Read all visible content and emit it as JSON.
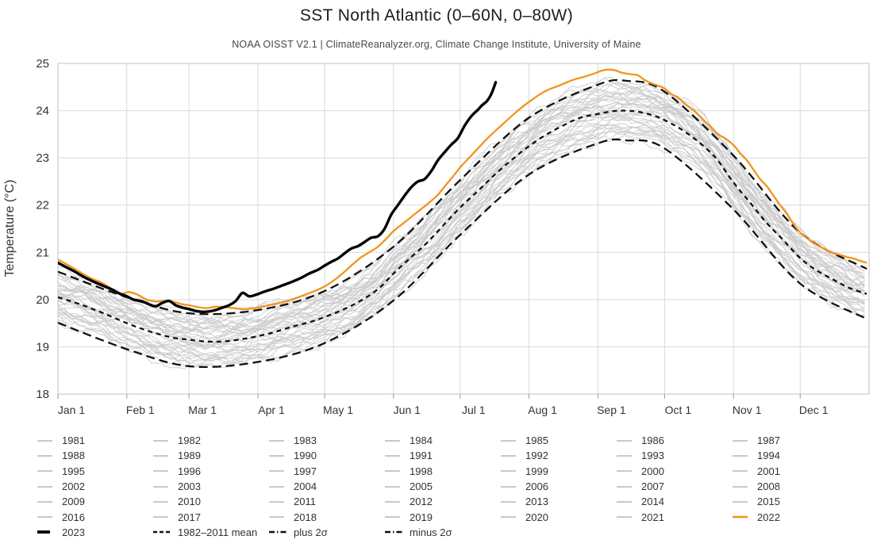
{
  "header": {
    "title": "SST North Atlantic (0–60N, 0–80W)",
    "subtitle": "NOAA OISST V2.1 | ClimateReanalyzer.org, Climate Change Institute, University of Maine"
  },
  "colors": {
    "current_year": "#000000",
    "previous_year": "#f2941d",
    "stat_lines": "#111111",
    "background_series": "#c9c9c9",
    "grid": "#d9d9d9",
    "axis": "#c0c0c0",
    "tick": "#999999",
    "axis_text": "#333333"
  },
  "chart_data": {
    "type": "line",
    "title": "SST North Atlantic (0–60N, 0–80W)",
    "subtitle": "NOAA OISST V2.1 | ClimateReanalyzer.org, Climate Change Institute, University of Maine",
    "xlabel": "",
    "ylabel": "Temperature (°C)",
    "ylim": [
      18,
      25
    ],
    "yticks": [
      18,
      19,
      20,
      21,
      22,
      23,
      24,
      25
    ],
    "xtick_labels": [
      "Jan 1",
      "Feb 1",
      "Mar 1",
      "Apr 1",
      "May 1",
      "Jun 1",
      "Jul 1",
      "Aug 1",
      "Sep 1",
      "Oct 1",
      "Nov 1",
      "Dec 1"
    ],
    "month_start_days": [
      0,
      31,
      59,
      90,
      120,
      151,
      181,
      212,
      243,
      273,
      304,
      334
    ],
    "grid": true,
    "legend_position": "bottom",
    "series": {
      "year_2023": {
        "label": "2023",
        "style": "solid-bold",
        "points": [
          [
            0,
            20.78
          ],
          [
            4,
            20.68
          ],
          [
            8,
            20.58
          ],
          [
            12,
            20.47
          ],
          [
            16,
            20.38
          ],
          [
            20,
            20.3
          ],
          [
            24,
            20.22
          ],
          [
            28,
            20.12
          ],
          [
            31,
            20.07
          ],
          [
            34,
            20.0
          ],
          [
            38,
            19.96
          ],
          [
            41,
            19.9
          ],
          [
            44,
            19.86
          ],
          [
            47,
            19.93
          ],
          [
            50,
            19.97
          ],
          [
            53,
            19.88
          ],
          [
            56,
            19.83
          ],
          [
            59,
            19.8
          ],
          [
            62,
            19.76
          ],
          [
            65,
            19.74
          ],
          [
            68,
            19.75
          ],
          [
            71,
            19.78
          ],
          [
            74,
            19.83
          ],
          [
            77,
            19.88
          ],
          [
            80,
            19.97
          ],
          [
            83,
            20.14
          ],
          [
            86,
            20.07
          ],
          [
            89,
            20.1
          ],
          [
            93,
            20.17
          ],
          [
            97,
            20.23
          ],
          [
            101,
            20.3
          ],
          [
            105,
            20.37
          ],
          [
            109,
            20.45
          ],
          [
            113,
            20.55
          ],
          [
            117,
            20.63
          ],
          [
            120,
            20.72
          ],
          [
            123,
            20.8
          ],
          [
            126,
            20.87
          ],
          [
            129,
            20.98
          ],
          [
            132,
            21.08
          ],
          [
            135,
            21.13
          ],
          [
            138,
            21.22
          ],
          [
            141,
            21.31
          ],
          [
            144,
            21.34
          ],
          [
            147,
            21.5
          ],
          [
            150,
            21.8
          ],
          [
            153,
            22.0
          ],
          [
            156,
            22.2
          ],
          [
            159,
            22.38
          ],
          [
            162,
            22.5
          ],
          [
            165,
            22.55
          ],
          [
            168,
            22.72
          ],
          [
            171,
            22.95
          ],
          [
            174,
            23.12
          ],
          [
            177,
            23.28
          ],
          [
            180,
            23.42
          ],
          [
            183,
            23.68
          ],
          [
            186,
            23.88
          ],
          [
            189,
            24.02
          ],
          [
            191,
            24.12
          ],
          [
            193,
            24.2
          ],
          [
            195,
            24.35
          ],
          [
            197,
            24.6
          ]
        ]
      },
      "year_2022": {
        "label": "2022",
        "style": "solid",
        "points": [
          [
            0,
            20.85
          ],
          [
            5,
            20.72
          ],
          [
            10,
            20.58
          ],
          [
            15,
            20.45
          ],
          [
            20,
            20.35
          ],
          [
            25,
            20.2
          ],
          [
            28,
            20.12
          ],
          [
            32,
            20.16
          ],
          [
            36,
            20.1
          ],
          [
            40,
            20.0
          ],
          [
            44,
            19.96
          ],
          [
            48,
            19.97
          ],
          [
            52,
            19.95
          ],
          [
            56,
            19.9
          ],
          [
            59,
            19.88
          ],
          [
            63,
            19.84
          ],
          [
            67,
            19.82
          ],
          [
            71,
            19.85
          ],
          [
            75,
            19.84
          ],
          [
            79,
            19.82
          ],
          [
            83,
            19.8
          ],
          [
            87,
            19.81
          ],
          [
            91,
            19.84
          ],
          [
            95,
            19.88
          ],
          [
            99,
            19.92
          ],
          [
            103,
            19.97
          ],
          [
            107,
            20.03
          ],
          [
            111,
            20.1
          ],
          [
            115,
            20.17
          ],
          [
            120,
            20.28
          ],
          [
            124,
            20.4
          ],
          [
            128,
            20.55
          ],
          [
            132,
            20.72
          ],
          [
            136,
            20.88
          ],
          [
            140,
            21.0
          ],
          [
            144,
            21.12
          ],
          [
            148,
            21.3
          ],
          [
            151,
            21.45
          ],
          [
            155,
            21.6
          ],
          [
            159,
            21.75
          ],
          [
            163,
            21.9
          ],
          [
            167,
            22.05
          ],
          [
            171,
            22.22
          ],
          [
            175,
            22.45
          ],
          [
            178,
            22.62
          ],
          [
            181,
            22.8
          ],
          [
            185,
            23.0
          ],
          [
            189,
            23.2
          ],
          [
            193,
            23.4
          ],
          [
            197,
            23.58
          ],
          [
            201,
            23.75
          ],
          [
            205,
            23.92
          ],
          [
            209,
            24.08
          ],
          [
            213,
            24.22
          ],
          [
            217,
            24.35
          ],
          [
            221,
            24.45
          ],
          [
            225,
            24.52
          ],
          [
            229,
            24.6
          ],
          [
            233,
            24.67
          ],
          [
            237,
            24.72
          ],
          [
            241,
            24.78
          ],
          [
            245,
            24.85
          ],
          [
            248,
            24.87
          ],
          [
            251,
            24.85
          ],
          [
            254,
            24.8
          ],
          [
            258,
            24.77
          ],
          [
            261,
            24.75
          ],
          [
            264,
            24.65
          ],
          [
            267,
            24.58
          ],
          [
            270,
            24.53
          ],
          [
            273,
            24.47
          ],
          [
            276,
            24.35
          ],
          [
            279,
            24.28
          ],
          [
            282,
            24.15
          ],
          [
            285,
            24.05
          ],
          [
            288,
            23.92
          ],
          [
            291,
            23.78
          ],
          [
            294,
            23.65
          ],
          [
            297,
            23.5
          ],
          [
            300,
            23.42
          ],
          [
            304,
            23.27
          ],
          [
            307,
            23.1
          ],
          [
            310,
            22.95
          ],
          [
            313,
            22.75
          ],
          [
            316,
            22.55
          ],
          [
            319,
            22.4
          ],
          [
            322,
            22.2
          ],
          [
            325,
            22.0
          ],
          [
            328,
            21.82
          ],
          [
            331,
            21.6
          ],
          [
            334,
            21.42
          ],
          [
            337,
            21.3
          ],
          [
            340,
            21.2
          ],
          [
            343,
            21.12
          ],
          [
            346,
            21.05
          ],
          [
            349,
            20.98
          ],
          [
            352,
            20.95
          ],
          [
            355,
            20.9
          ],
          [
            358,
            20.87
          ],
          [
            361,
            20.82
          ],
          [
            364,
            20.78
          ]
        ]
      },
      "mean_1982_2011": {
        "label": "1982–2011 mean",
        "style": "dashed",
        "points": [
          [
            0,
            20.05
          ],
          [
            10,
            19.9
          ],
          [
            20,
            19.72
          ],
          [
            31,
            19.5
          ],
          [
            41,
            19.33
          ],
          [
            51,
            19.2
          ],
          [
            59,
            19.15
          ],
          [
            68,
            19.11
          ],
          [
            76,
            19.12
          ],
          [
            85,
            19.18
          ],
          [
            95,
            19.28
          ],
          [
            105,
            19.42
          ],
          [
            113,
            19.52
          ],
          [
            120,
            19.63
          ],
          [
            128,
            19.78
          ],
          [
            136,
            19.97
          ],
          [
            144,
            20.22
          ],
          [
            151,
            20.55
          ],
          [
            159,
            20.9
          ],
          [
            166,
            21.2
          ],
          [
            174,
            21.6
          ],
          [
            181,
            21.95
          ],
          [
            189,
            22.3
          ],
          [
            196,
            22.62
          ],
          [
            204,
            22.95
          ],
          [
            212,
            23.25
          ],
          [
            220,
            23.5
          ],
          [
            228,
            23.7
          ],
          [
            235,
            23.85
          ],
          [
            243,
            23.93
          ],
          [
            250,
            23.99
          ],
          [
            256,
            24.0
          ],
          [
            262,
            23.97
          ],
          [
            269,
            23.88
          ],
          [
            273,
            23.8
          ],
          [
            280,
            23.62
          ],
          [
            288,
            23.35
          ],
          [
            296,
            23.0
          ],
          [
            304,
            22.48
          ],
          [
            311,
            22.08
          ],
          [
            319,
            21.62
          ],
          [
            326,
            21.28
          ],
          [
            334,
            20.88
          ],
          [
            341,
            20.63
          ],
          [
            349,
            20.42
          ],
          [
            356,
            20.25
          ],
          [
            364,
            20.12
          ]
        ]
      },
      "sigma_band": {
        "plus_label": "plus 2σ",
        "minus_label": "minus 2σ",
        "style": "dash-dot",
        "offsets": [
          [
            0,
            0.54
          ],
          [
            31,
            0.55
          ],
          [
            59,
            0.56
          ],
          [
            90,
            0.55
          ],
          [
            120,
            0.55
          ],
          [
            151,
            0.57
          ],
          [
            181,
            0.58
          ],
          [
            212,
            0.6
          ],
          [
            243,
            0.62
          ],
          [
            256,
            0.63
          ],
          [
            273,
            0.6
          ],
          [
            304,
            0.57
          ],
          [
            334,
            0.54
          ],
          [
            364,
            0.53
          ]
        ]
      }
    },
    "background_years": [
      1981,
      1982,
      1983,
      1984,
      1985,
      1986,
      1987,
      1988,
      1989,
      1990,
      1991,
      1992,
      1993,
      1994,
      1995,
      1996,
      1997,
      1998,
      1999,
      2000,
      2001,
      2002,
      2003,
      2004,
      2005,
      2006,
      2007,
      2008,
      2009,
      2010,
      2011,
      2012,
      2013,
      2014,
      2015,
      2016,
      2017,
      2018,
      2019,
      2020,
      2021
    ]
  },
  "legend": {
    "stat_items": [
      {
        "label": "2023",
        "style": "current"
      },
      {
        "label": "1982–2011 mean",
        "style": "mean"
      },
      {
        "label": "plus 2σ",
        "style": "plus-sigma"
      },
      {
        "label": "minus 2σ",
        "style": "minus-sigma"
      }
    ]
  }
}
